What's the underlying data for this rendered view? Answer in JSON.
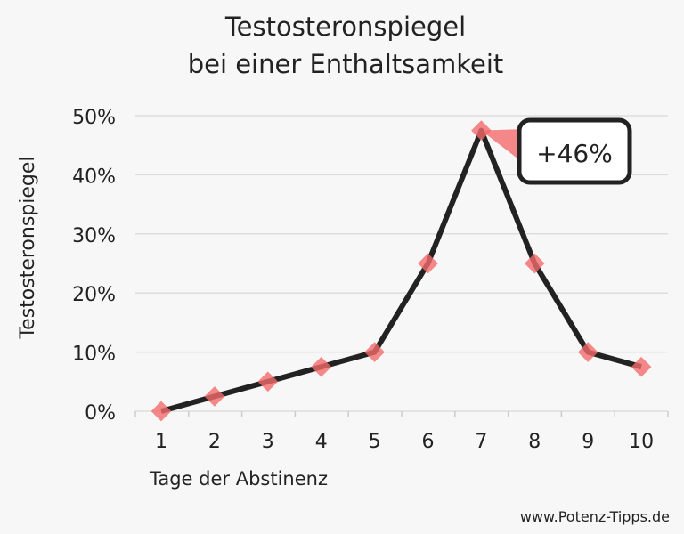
{
  "chart_data": {
    "type": "line",
    "title": [
      "Testosteronspiegel",
      "bei einer Enthaltsamkeit"
    ],
    "xlabel": "Tage der Abstinenz",
    "ylabel": "Testosteronspiegel",
    "x": [
      1,
      2,
      3,
      4,
      5,
      6,
      7,
      8,
      9,
      10
    ],
    "x_tick_labels": [
      "1",
      "2",
      "3",
      "4",
      "5",
      "6",
      "7",
      "8",
      "9",
      "10"
    ],
    "values": [
      0,
      2.5,
      5,
      7.5,
      10,
      25,
      47.5,
      25,
      10,
      7.5
    ],
    "ylim": [
      0,
      50
    ],
    "y_ticks": [
      0,
      10,
      20,
      30,
      40,
      50
    ],
    "y_tick_labels": [
      "0%",
      "10%",
      "20%",
      "30%",
      "40%",
      "50%"
    ],
    "grid": true,
    "annotation": {
      "text": "+46%",
      "x": 7
    },
    "line_color": "#222222",
    "marker_color": "#f26a6a"
  },
  "footer": "www.Potenz-Tipps.de"
}
